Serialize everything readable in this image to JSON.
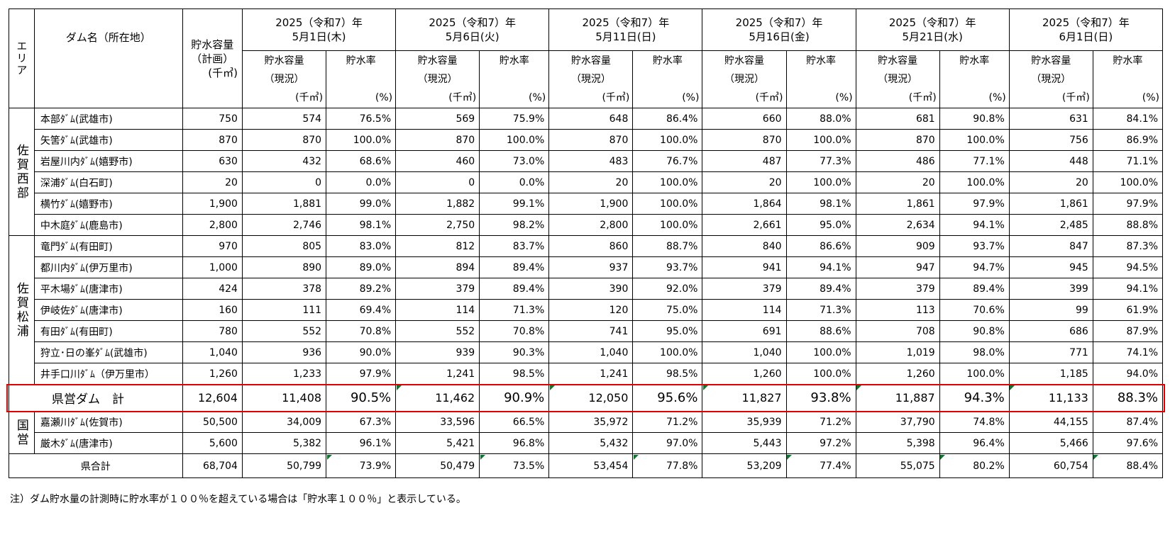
{
  "header": {
    "area": "エリア",
    "dam_name": "ダム名（所在地）",
    "plan_capacity": [
      "貯水容量",
      "（計画）",
      "(千㎥)"
    ],
    "cur_capacity": [
      "貯水容量",
      "（現況）",
      "(千㎥)"
    ],
    "rate": [
      "貯水率",
      "(%)"
    ],
    "dates": [
      {
        "year": "2025（令和7）年",
        "day": "5月1日(木)"
      },
      {
        "year": "2025（令和7）年",
        "day": "5月6日(火)"
      },
      {
        "year": "2025（令和7）年",
        "day": "5月11日(日)"
      },
      {
        "year": "2025（令和7）年",
        "day": "5月16日(金)"
      },
      {
        "year": "2025（令和7）年",
        "day": "5月21日(水)"
      },
      {
        "year": "2025（令和7）年",
        "day": "6月1日(日)"
      }
    ]
  },
  "groups": [
    {
      "area": "佐賀西部",
      "rows": [
        {
          "name": "本部ﾀﾞﾑ(武雄市)",
          "plan": "750",
          "vals": [
            "574",
            "76.5%",
            "569",
            "75.9%",
            "648",
            "86.4%",
            "660",
            "88.0%",
            "681",
            "90.8%",
            "631",
            "84.1%"
          ]
        },
        {
          "name": "矢筈ﾀﾞﾑ(武雄市)",
          "plan": "870",
          "vals": [
            "870",
            "100.0%",
            "870",
            "100.0%",
            "870",
            "100.0%",
            "870",
            "100.0%",
            "870",
            "100.0%",
            "756",
            "86.9%"
          ]
        },
        {
          "name": "岩屋川内ﾀﾞﾑ(嬉野市)",
          "plan": "630",
          "vals": [
            "432",
            "68.6%",
            "460",
            "73.0%",
            "483",
            "76.7%",
            "487",
            "77.3%",
            "486",
            "77.1%",
            "448",
            "71.1%"
          ]
        },
        {
          "name": "深浦ﾀﾞﾑ(白石町)",
          "plan": "20",
          "vals": [
            "0",
            "0.0%",
            "0",
            "0.0%",
            "20",
            "100.0%",
            "20",
            "100.0%",
            "20",
            "100.0%",
            "20",
            "100.0%"
          ]
        },
        {
          "name": "横竹ﾀﾞﾑ(嬉野市)",
          "plan": "1,900",
          "vals": [
            "1,881",
            "99.0%",
            "1,882",
            "99.1%",
            "1,900",
            "100.0%",
            "1,864",
            "98.1%",
            "1,861",
            "97.9%",
            "1,861",
            "97.9%"
          ]
        },
        {
          "name": "中木庭ﾀﾞﾑ(鹿島市)",
          "plan": "2,800",
          "vals": [
            "2,746",
            "98.1%",
            "2,750",
            "98.2%",
            "2,800",
            "100.0%",
            "2,661",
            "95.0%",
            "2,634",
            "94.1%",
            "2,485",
            "88.8%"
          ]
        }
      ]
    },
    {
      "area": "佐賀松浦",
      "rows": [
        {
          "name": "竜門ﾀﾞﾑ(有田町)",
          "plan": "970",
          "vals": [
            "805",
            "83.0%",
            "812",
            "83.7%",
            "860",
            "88.7%",
            "840",
            "86.6%",
            "909",
            "93.7%",
            "847",
            "87.3%"
          ]
        },
        {
          "name": "都川内ﾀﾞﾑ(伊万里市)",
          "plan": "1,000",
          "vals": [
            "890",
            "89.0%",
            "894",
            "89.4%",
            "937",
            "93.7%",
            "941",
            "94.1%",
            "947",
            "94.7%",
            "945",
            "94.5%"
          ]
        },
        {
          "name": "平木場ﾀﾞﾑ(唐津市)",
          "plan": "424",
          "vals": [
            "378",
            "89.2%",
            "379",
            "89.4%",
            "390",
            "92.0%",
            "379",
            "89.4%",
            "379",
            "89.4%",
            "399",
            "94.1%"
          ]
        },
        {
          "name": "伊岐佐ﾀﾞﾑ(唐津市)",
          "plan": "160",
          "vals": [
            "111",
            "69.4%",
            "114",
            "71.3%",
            "120",
            "75.0%",
            "114",
            "71.3%",
            "113",
            "70.6%",
            "99",
            "61.9%"
          ]
        },
        {
          "name": "有田ﾀﾞﾑ(有田町)",
          "plan": "780",
          "vals": [
            "552",
            "70.8%",
            "552",
            "70.8%",
            "741",
            "95.0%",
            "691",
            "88.6%",
            "708",
            "90.8%",
            "686",
            "87.9%"
          ]
        },
        {
          "name": "狩立･日の峯ﾀﾞﾑ(武雄市)",
          "plan": "1,040",
          "vals": [
            "936",
            "90.0%",
            "939",
            "90.3%",
            "1,040",
            "100.0%",
            "1,040",
            "100.0%",
            "1,019",
            "98.0%",
            "771",
            "74.1%"
          ]
        },
        {
          "name": "井手口川ﾀﾞﾑ（伊万里市）",
          "plan": "1,260",
          "vals": [
            "1,233",
            "97.9%",
            "1,241",
            "98.5%",
            "1,241",
            "98.5%",
            "1,260",
            "100.0%",
            "1,260",
            "100.0%",
            "1,185",
            "94.0%"
          ]
        }
      ]
    }
  ],
  "ken_subtotal": {
    "label": "県営ダム　計",
    "plan": "12,604",
    "vals": [
      "11,408",
      "90.5%",
      "11,462",
      "90.9%",
      "12,050",
      "95.6%",
      "11,827",
      "93.8%",
      "11,887",
      "94.3%",
      "11,133",
      "88.3%"
    ]
  },
  "kokuei": {
    "area": "国営",
    "rows": [
      {
        "name": "嘉瀬川ﾀﾞﾑ(佐賀市)",
        "plan": "50,500",
        "vals": [
          "34,009",
          "67.3%",
          "33,596",
          "66.5%",
          "35,972",
          "71.2%",
          "35,939",
          "71.2%",
          "37,790",
          "74.8%",
          "44,155",
          "87.4%"
        ]
      },
      {
        "name": "厳木ﾀﾞﾑ(唐津市)",
        "plan": "5,600",
        "vals": [
          "5,382",
          "96.1%",
          "5,421",
          "96.8%",
          "5,432",
          "97.0%",
          "5,443",
          "97.2%",
          "5,398",
          "96.4%",
          "5,466",
          "97.6%"
        ]
      }
    ]
  },
  "total": {
    "label": "県合計",
    "plan": "68,704",
    "vals": [
      "50,799",
      "73.9%",
      "50,479",
      "73.5%",
      "53,454",
      "77.8%",
      "53,209",
      "77.4%",
      "55,075",
      "80.2%",
      "60,754",
      "88.4%"
    ]
  },
  "note": "注）ダム貯水量の計測時に貯水率が１００％を超えている場合は「貯水率１００％」と表示している。",
  "colors": {
    "highlight_border": "#e00000",
    "comment_marker": "#0a7a2a"
  }
}
